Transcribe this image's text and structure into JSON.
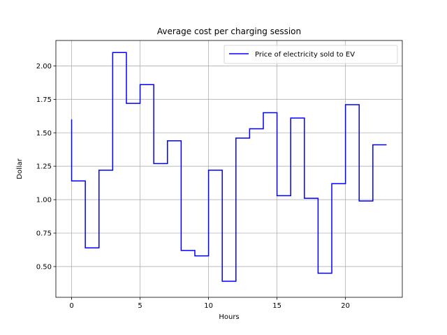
{
  "chart_data": {
    "type": "line",
    "drawstyle": "steps-pre",
    "title": "Average cost per charging session",
    "xlabel": "Hours",
    "ylabel": "Dollar",
    "xlim": [
      -1.15,
      24.15
    ],
    "ylim": [
      0.27,
      2.19
    ],
    "x_ticks": [
      0,
      5,
      10,
      15,
      20
    ],
    "y_ticks": [
      0.5,
      0.75,
      1.0,
      1.25,
      1.5,
      1.75,
      2.0
    ],
    "y_tick_labels": [
      "0.50",
      "0.75",
      "1.00",
      "1.25",
      "1.50",
      "1.75",
      "2.00"
    ],
    "grid": true,
    "legend_position": "top-right",
    "series": [
      {
        "name": "Price of electricity sold to EV",
        "color": "#0000ff",
        "x": [
          0,
          1,
          2,
          3,
          4,
          5,
          6,
          7,
          8,
          9,
          10,
          11,
          12,
          13,
          14,
          15,
          16,
          17,
          18,
          19,
          20,
          21,
          22,
          23
        ],
        "values": [
          1.6,
          1.14,
          0.64,
          1.22,
          2.1,
          1.72,
          1.86,
          1.27,
          1.44,
          0.62,
          0.58,
          1.22,
          0.39,
          1.46,
          1.53,
          1.65,
          1.03,
          1.61,
          1.01,
          0.45,
          1.12,
          1.71,
          0.99,
          1.41
        ]
      }
    ]
  }
}
